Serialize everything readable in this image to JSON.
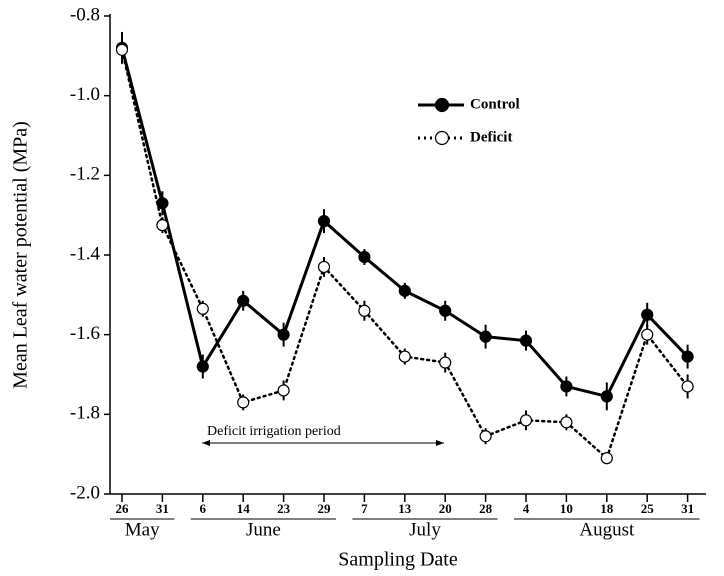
{
  "chart_data": {
    "type": "line",
    "y_label": "Mean Leaf water potential (MPa)",
    "x_label": "Sampling Date",
    "annotation": "Deficit irrigation period",
    "categories": [
      "26",
      "31",
      "6",
      "14",
      "23",
      "29",
      "7",
      "13",
      "20",
      "28",
      "4",
      "10",
      "18",
      "25",
      "31"
    ],
    "category_groups": [
      {
        "label": "May",
        "count": 2
      },
      {
        "label": "June",
        "count": 4
      },
      {
        "label": "July",
        "count": 4
      },
      {
        "label": "August",
        "count": 5
      }
    ],
    "ylim": [
      -2.0,
      -0.8
    ],
    "yticks": [
      -0.8,
      {
        "value": -1.0,
        "label": "-1.0"
      },
      -1.2,
      -1.4,
      -1.6,
      -1.8,
      {
        "value": -2.0,
        "label": "-2.0"
      }
    ],
    "legend_position": "upper right",
    "series": [
      {
        "name": "Control",
        "color": "#000000",
        "line_style": "solid",
        "marker_fill": "#000000",
        "values": [
          -0.88,
          -1.27,
          -1.68,
          -1.515,
          -1.6,
          -1.315,
          -1.405,
          -1.49,
          -1.54,
          -1.605,
          -1.615,
          -1.73,
          -1.755,
          -1.55,
          -1.655
        ],
        "errors": [
          0.04,
          0.03,
          0.03,
          0.025,
          0.03,
          0.03,
          0.02,
          0.02,
          0.025,
          0.03,
          0.025,
          0.025,
          0.035,
          0.03,
          0.03
        ]
      },
      {
        "name": "Deficit",
        "color": "#000000",
        "line_style": "dotted",
        "marker_fill": "#ffffff",
        "values": [
          -0.885,
          -1.325,
          -1.535,
          -1.77,
          -1.74,
          -1.43,
          -1.54,
          -1.655,
          -1.67,
          -1.855,
          -1.815,
          -1.82,
          -1.91,
          -1.6,
          -1.73
        ],
        "errors": [
          0.02,
          0.02,
          0.02,
          0.02,
          0.025,
          0.025,
          0.025,
          0.02,
          0.025,
          0.02,
          0.025,
          0.02,
          0.015,
          0.025,
          0.03
        ]
      }
    ]
  }
}
